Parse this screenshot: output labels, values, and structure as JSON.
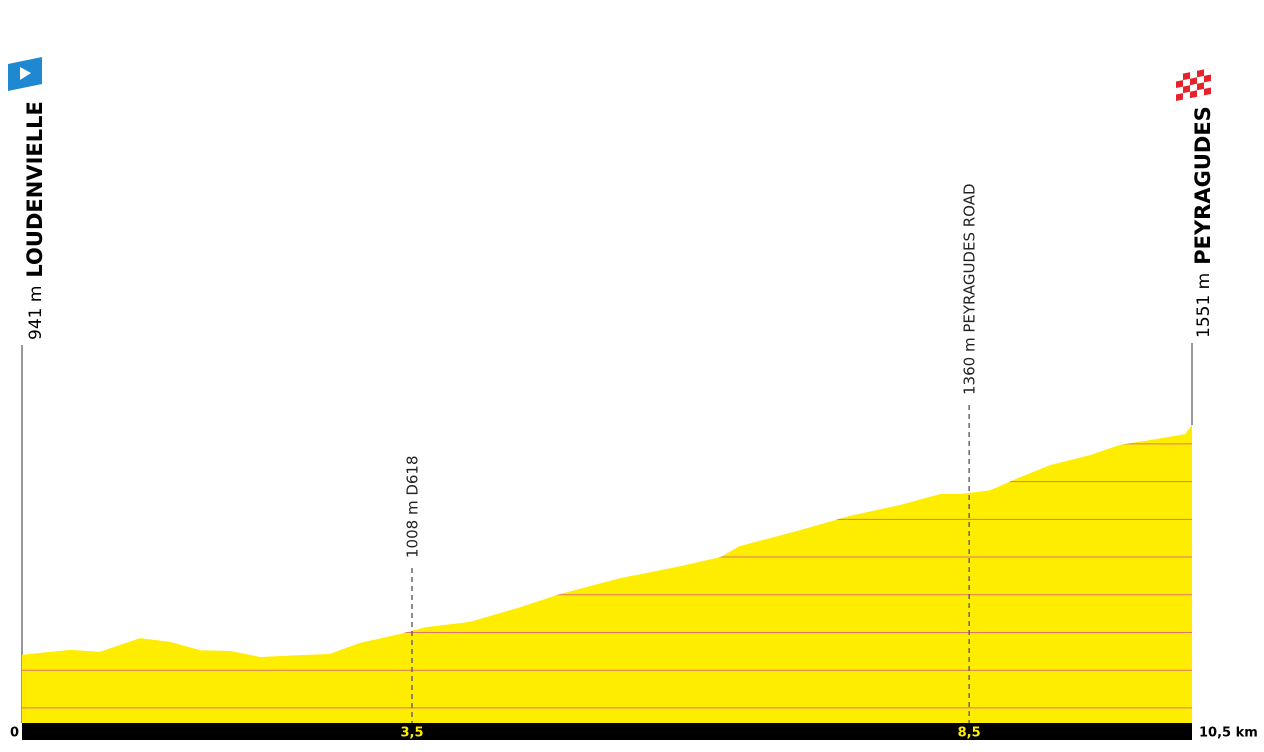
{
  "chart_data": {
    "type": "area",
    "x": [
      0,
      0.43,
      0.7,
      1.06,
      1.33,
      1.6,
      1.87,
      2.14,
      2.49,
      2.76,
      3.03,
      3.39,
      3.62,
      4.02,
      4.47,
      4.83,
      5.37,
      5.91,
      6.27,
      6.44,
      6.98,
      7.43,
      7.88,
      8.24,
      8.42,
      8.69,
      8.96,
      9.23,
      9.58,
      9.85,
      10.12,
      10.44,
      10.5
    ],
    "values": [
      941,
      954,
      949,
      985,
      975,
      953,
      951,
      935,
      940,
      943,
      972,
      996,
      1014,
      1028,
      1067,
      1102,
      1144,
      1176,
      1200,
      1229,
      1271,
      1309,
      1338,
      1367,
      1367,
      1377,
      1412,
      1444,
      1470,
      1497,
      1510,
      1526,
      1551
    ],
    "color": "#ffed00",
    "grid_color": "#e0736b",
    "xlim": [
      0,
      10.5
    ],
    "ylim": [
      760,
      1900
    ],
    "xticks": [
      0,
      {
        "value": 3.5,
        "label": "3,5"
      },
      {
        "value": 8.5,
        "label": "8,5"
      },
      {
        "value": 10.5,
        "label": "10,5 km"
      }
    ],
    "yticks": [
      800,
      900,
      1000,
      1100,
      1200,
      1300,
      1400,
      1500
    ],
    "grid": true,
    "start": {
      "altitude": "941 m",
      "name": "LOUDENVIELLE"
    },
    "finish": {
      "altitude": "1551 m",
      "name": "PEYRAGUDES"
    },
    "annotations": [
      {
        "x": 3.5,
        "text": "1008 m D618"
      },
      {
        "x": 8.5,
        "text": "1360 m PEYRAGUDES ROAD"
      }
    ]
  }
}
